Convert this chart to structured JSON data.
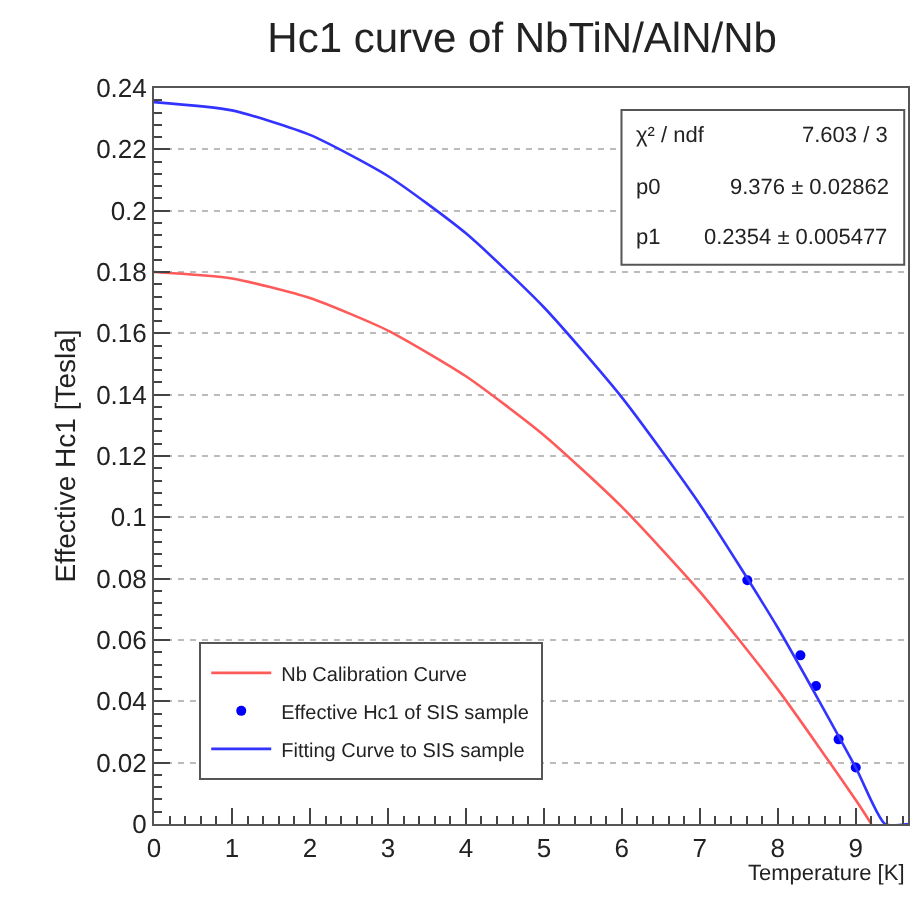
{
  "chart_data": {
    "type": "line",
    "title": "Hc1 curve of NbTiN/AlN/Nb",
    "xlabel": "Temperature [K]",
    "ylabel": "Effective Hc1 [Tesla]",
    "xlim": [
      0,
      9.67
    ],
    "xticks": [
      0,
      1,
      2,
      3,
      4,
      5,
      6,
      7,
      8,
      9
    ],
    "ylim": [
      0,
      0.24
    ],
    "yticks": [
      0,
      0.02,
      0.04,
      0.06,
      0.08,
      0.1,
      0.12,
      0.14,
      0.16,
      0.18,
      0.2,
      0.22,
      0.24
    ],
    "grid": "y",
    "legend": "bottom left",
    "series": [
      {
        "name": "Nb Calibration Curve",
        "color": "#ff5a5a",
        "marker": "none",
        "x": [
          0,
          1,
          2,
          3,
          4,
          5,
          6,
          7,
          8,
          9,
          9.2
        ],
        "values": [
          0.18,
          0.1779,
          0.1715,
          0.1609,
          0.146,
          0.1268,
          0.1034,
          0.0758,
          0.0439,
          0.0078,
          0
        ]
      },
      {
        "name": "Effective Hc1 of SIS sample",
        "type": "scatter",
        "color": "#0000ff",
        "marker": "circle",
        "x": [
          7.61,
          8.29,
          8.49,
          8.78,
          9.0
        ],
        "values": [
          0.0795,
          0.055,
          0.045,
          0.0276,
          0.0184
        ]
      },
      {
        "name": "Fitting Curve to SIS sample",
        "color": "#3333ff",
        "marker": "none",
        "x": [
          0,
          1,
          2,
          3,
          4,
          5,
          6,
          7,
          8,
          9,
          9.376,
          9.67
        ],
        "values": [
          0.2354,
          0.2327,
          0.2247,
          0.2113,
          0.1926,
          0.1685,
          0.1391,
          0.1042,
          0.064,
          0.0184,
          0,
          0
        ]
      }
    ],
    "annotations": [
      "χ² / ndf",
      "7.603 / 3",
      "p0",
      "9.376 ± 0.02862",
      "p1",
      "0.2354 ± 0.005477"
    ]
  }
}
